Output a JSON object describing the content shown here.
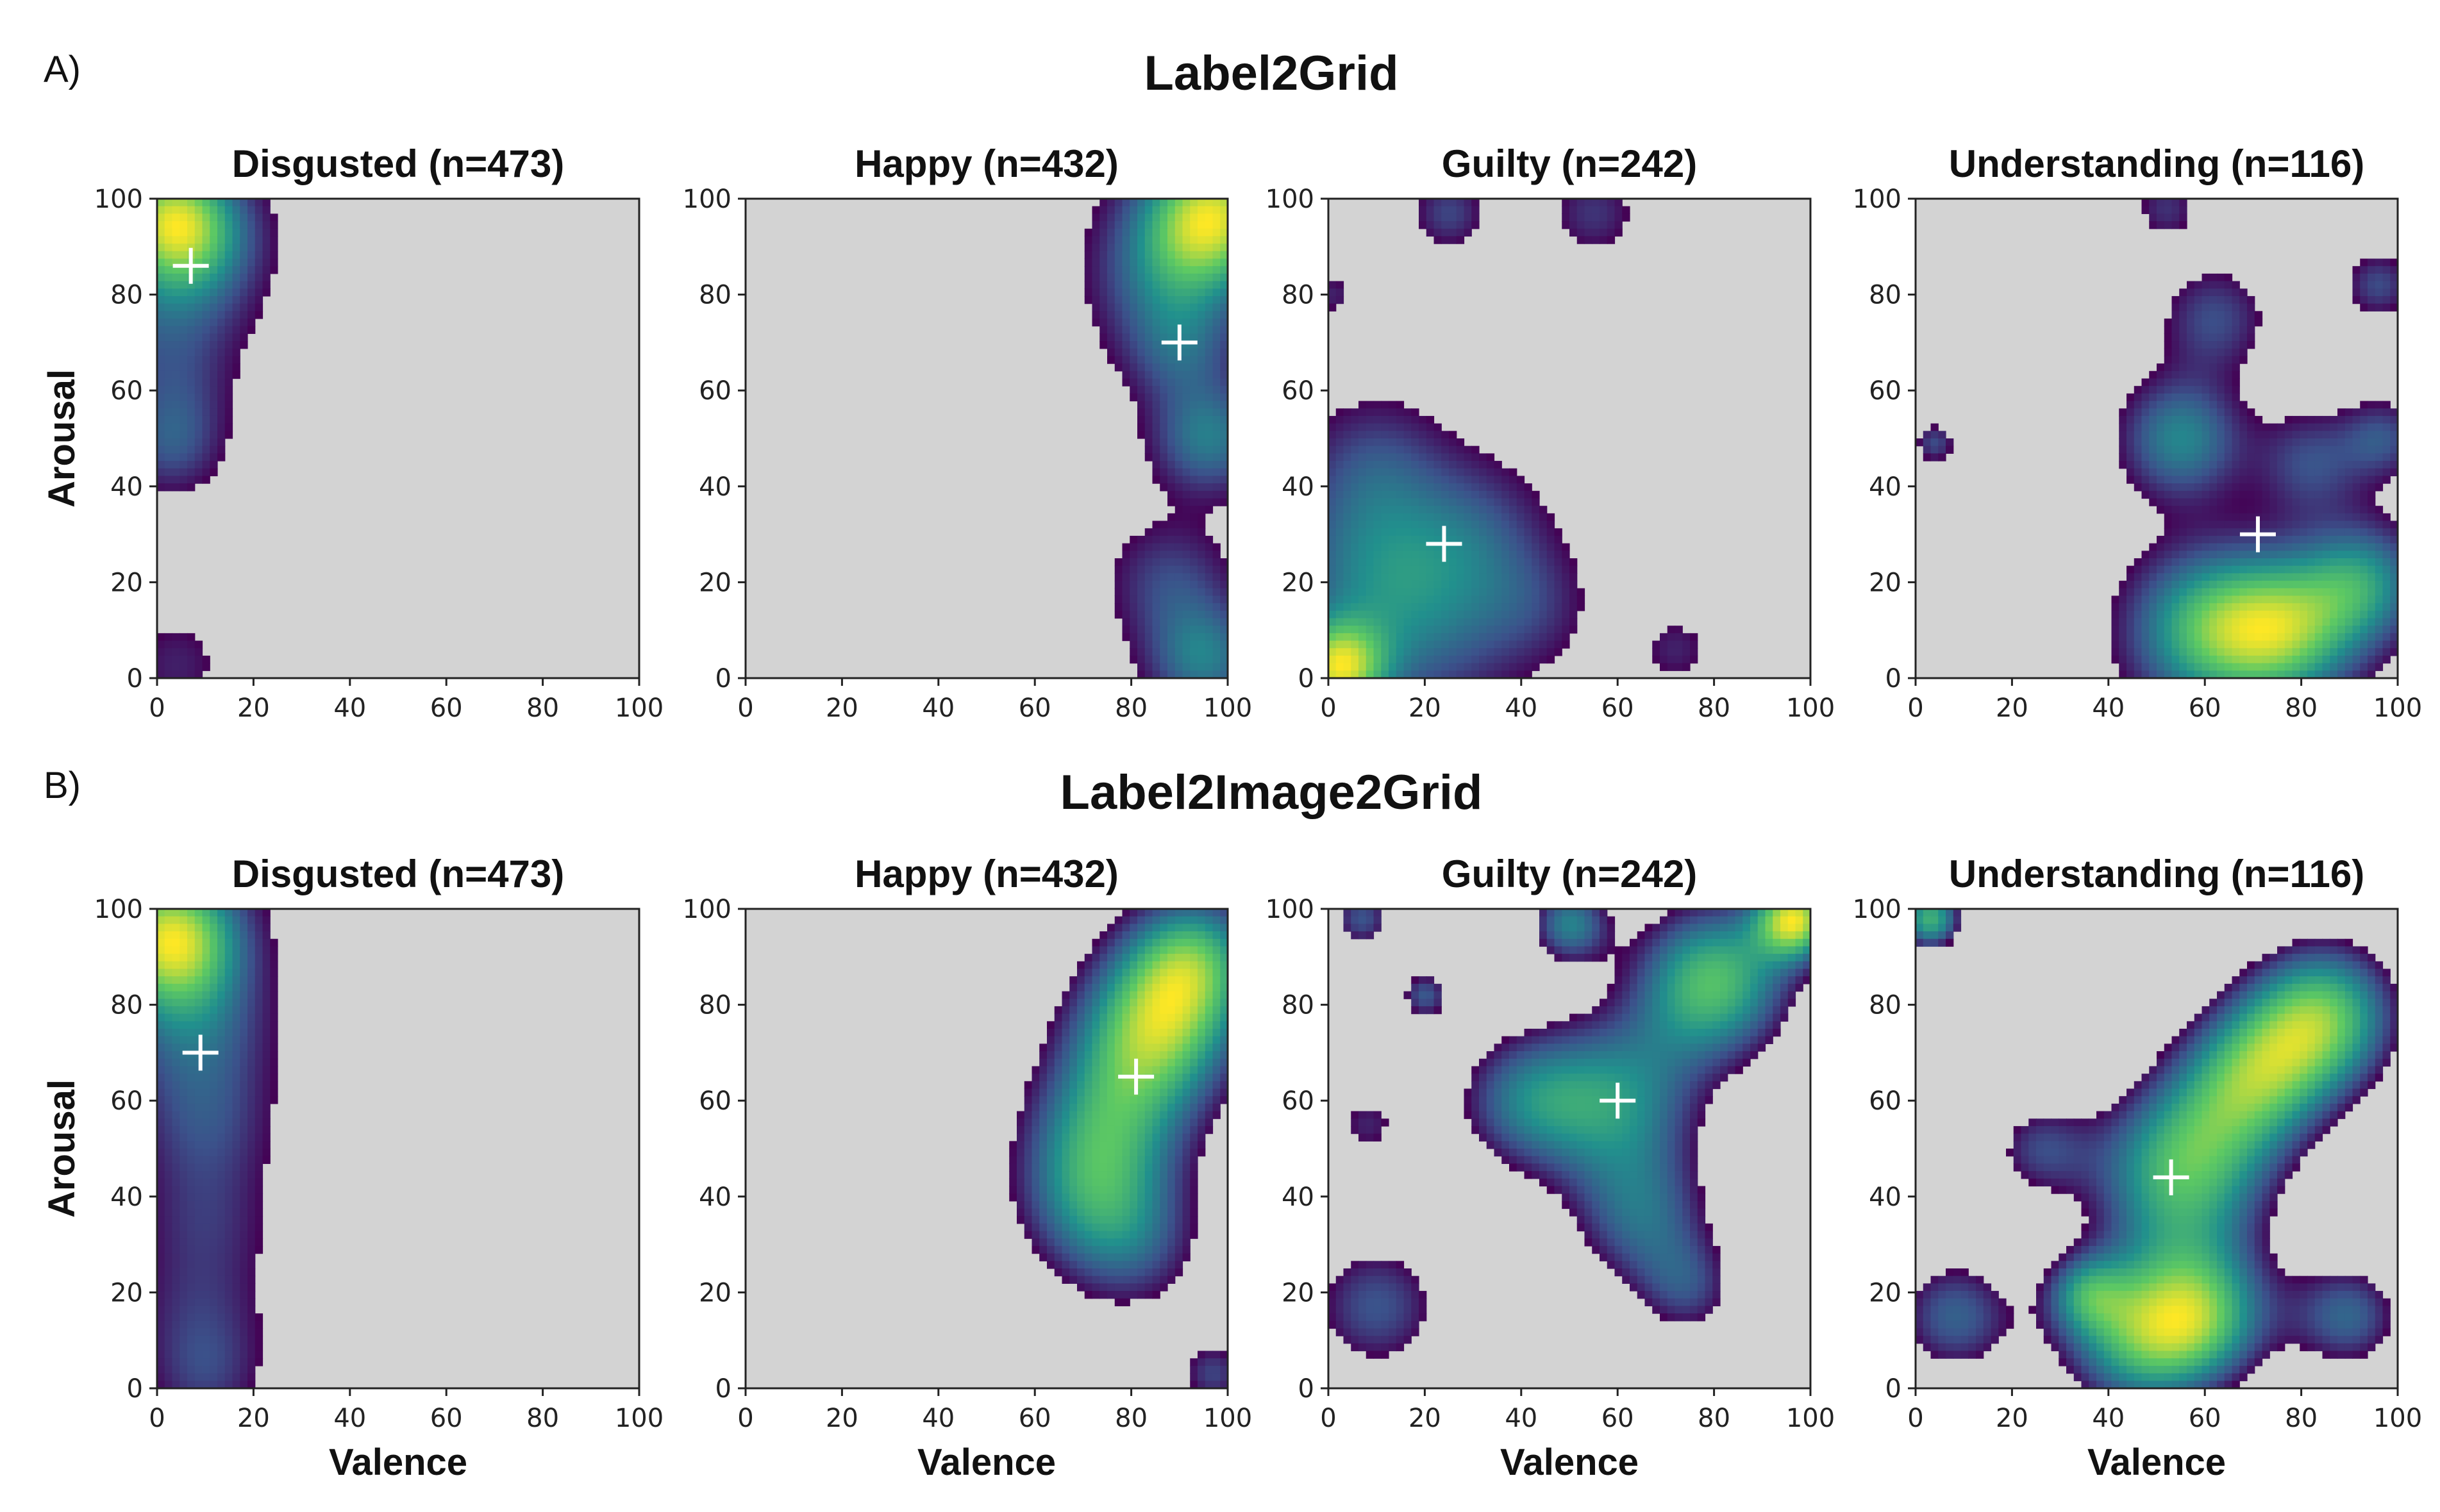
{
  "chart_data": [
    {
      "panel": "A)",
      "row_title": "Label2Grid",
      "type": "heatmap",
      "xlabel": "",
      "ylabel": "Arousal",
      "xlim": [
        0,
        100
      ],
      "ylim": [
        0,
        100
      ],
      "x_ticks": [
        0,
        20,
        40,
        60,
        80,
        100
      ],
      "y_ticks": [
        0,
        20,
        40,
        60,
        80,
        100
      ],
      "background_color": "#d3d3d3",
      "colormap": [
        "#440154",
        "#3b528b",
        "#21908d",
        "#5dc963",
        "#fde725"
      ],
      "subplots": [
        {
          "title": "Disgusted (n=473)",
          "mean": [
            7,
            86
          ],
          "blobs": [
            [
              3,
              96,
              9,
              1.0
            ],
            [
              2,
              76,
              11,
              0.35
            ],
            [
              10,
              90,
              9,
              0.3
            ],
            [
              4,
              58,
              8,
              0.2
            ],
            [
              3,
              48,
              7,
              0.3
            ],
            [
              4,
              3,
              7,
              0.2
            ]
          ]
        },
        {
          "title": "Happy (n=432)",
          "mean": [
            90,
            70
          ],
          "blobs": [
            [
              97,
              97,
              10,
              1.0
            ],
            [
              88,
              84,
              11,
              0.45
            ],
            [
              90,
              68,
              8,
              0.3
            ],
            [
              96,
              50,
              8,
              0.5
            ],
            [
              88,
              20,
              9,
              0.3
            ],
            [
              95,
              4,
              8,
              0.5
            ]
          ]
        },
        {
          "title": "Guilty (n=242)",
          "mean": [
            24,
            28
          ],
          "blobs": [
            [
              2,
              2,
              7,
              1.0
            ],
            [
              8,
              25,
              13,
              0.4
            ],
            [
              20,
              10,
              13,
              0.35
            ],
            [
              30,
              30,
              11,
              0.3
            ],
            [
              10,
              45,
              10,
              0.25
            ],
            [
              42,
              15,
              9,
              0.2
            ],
            [
              25,
              97,
              5,
              0.3
            ],
            [
              55,
              97,
              6,
              0.25
            ],
            [
              72,
              6,
              5,
              0.2
            ],
            [
              1,
              80,
              3,
              0.2
            ]
          ]
        },
        {
          "title": "Understanding (n=116)",
          "mean": [
            71,
            30
          ],
          "blobs": [
            [
              55,
              50,
              9,
              0.4
            ],
            [
              60,
              10,
              12,
              0.5
            ],
            [
              77,
              10,
              11,
              0.55
            ],
            [
              93,
              20,
              9,
              0.4
            ],
            [
              62,
              75,
              8,
              0.25
            ],
            [
              82,
              45,
              8,
              0.25
            ],
            [
              96,
              82,
              5,
              0.25
            ],
            [
              97,
              50,
              6,
              0.25
            ],
            [
              4,
              49,
              3,
              0.25
            ],
            [
              52,
              98,
              5,
              0.2
            ]
          ]
        }
      ]
    },
    {
      "panel": "B)",
      "row_title": "Label2Image2Grid",
      "type": "heatmap",
      "xlabel": "Valence",
      "ylabel": "Arousal",
      "xlim": [
        0,
        100
      ],
      "ylim": [
        0,
        100
      ],
      "x_ticks": [
        0,
        20,
        40,
        60,
        80,
        100
      ],
      "y_ticks": [
        0,
        20,
        40,
        60,
        80,
        100
      ],
      "background_color": "#d3d3d3",
      "colormap": [
        "#440154",
        "#3b528b",
        "#21908d",
        "#5dc963",
        "#fde725"
      ],
      "subplots": [
        {
          "title": "Disgusted (n=473)",
          "mean": [
            9,
            70
          ],
          "blobs": [
            [
              3,
              94,
              10,
              1.0
            ],
            [
              8,
              75,
              11,
              0.35
            ],
            [
              10,
              55,
              10,
              0.25
            ],
            [
              10,
              35,
              10,
              0.2
            ],
            [
              9,
              15,
              10,
              0.2
            ],
            [
              10,
              2,
              8,
              0.2
            ]
          ]
        },
        {
          "title": "Happy (n=432)",
          "mean": [
            81,
            65
          ],
          "blobs": [
            [
              85,
              75,
              12,
              0.45
            ],
            [
              75,
              55,
              12,
              0.3
            ],
            [
              70,
              40,
              11,
              0.2
            ],
            [
              80,
              30,
              11,
              0.2
            ],
            [
              93,
              90,
              10,
              0.35
            ],
            [
              97,
              3,
              5,
              0.2
            ]
          ]
        },
        {
          "title": "Guilty (n=242)",
          "mean": [
            60,
            60
          ],
          "blobs": [
            [
              80,
              85,
              12,
              0.35
            ],
            [
              60,
              60,
              13,
              0.25
            ],
            [
              40,
              60,
              11,
              0.2
            ],
            [
              65,
              35,
              11,
              0.2
            ],
            [
              75,
              20,
              8,
              0.15
            ],
            [
              97,
              98,
              6,
              0.4
            ],
            [
              50,
              97,
              6,
              0.25
            ],
            [
              10,
              17,
              11,
              0.2
            ],
            [
              20,
              82,
              4,
              0.2
            ],
            [
              7,
              98,
              5,
              0.2
            ],
            [
              8,
              55,
              6,
              0.15
            ]
          ]
        },
        {
          "title": "Understanding (n=116)",
          "mean": [
            53,
            44
          ],
          "blobs": [
            [
              55,
              45,
              14,
              0.3
            ],
            [
              70,
              65,
              12,
              0.25
            ],
            [
              85,
              78,
              12,
              0.3
            ],
            [
              45,
              10,
              12,
              0.25
            ],
            [
              60,
              15,
              11,
              0.25
            ],
            [
              90,
              15,
              9,
              0.2
            ],
            [
              8,
              15,
              10,
              0.2
            ],
            [
              25,
              50,
              8,
              0.15
            ],
            [
              3,
              98,
              5,
              0.3
            ],
            [
              35,
              20,
              6,
              0.15
            ]
          ]
        }
      ]
    }
  ]
}
